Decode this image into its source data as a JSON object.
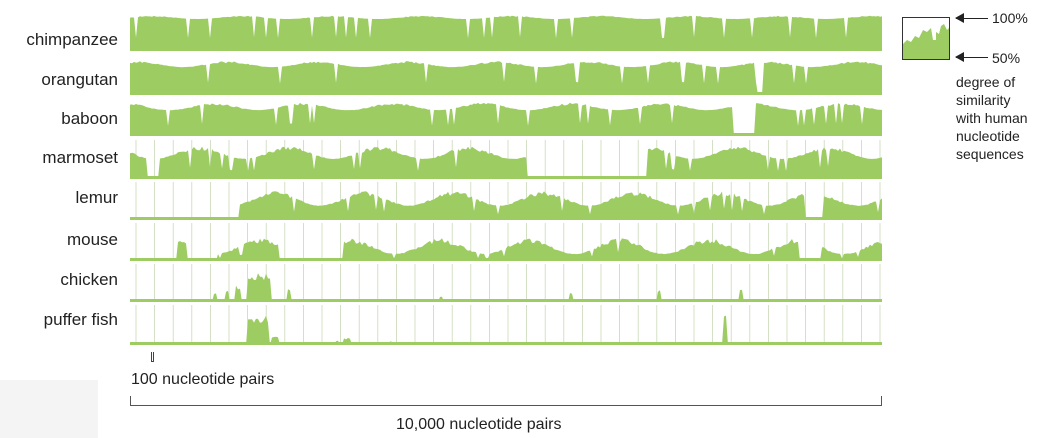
{
  "species": [
    {
      "name": "chimpanzee"
    },
    {
      "name": "orangutan"
    },
    {
      "name": "baboon"
    },
    {
      "name": "marmoset"
    },
    {
      "name": "lemur"
    },
    {
      "name": "mouse"
    },
    {
      "name": "chicken"
    },
    {
      "name": "puffer fish"
    }
  ],
  "legend": {
    "max_label": "100%",
    "min_label": "50%",
    "caption_lines": [
      "degree of",
      "similarity",
      "with human",
      "nucleotide",
      "sequences"
    ]
  },
  "scale": {
    "small_label": "100 nucleotide pairs",
    "large_label": "10,000 nucleotide pairs"
  },
  "colors": {
    "fill": "#9ccc62",
    "baseline": "#9ccc62",
    "grid": "#c9d9b8",
    "outline": "#333333"
  }
}
